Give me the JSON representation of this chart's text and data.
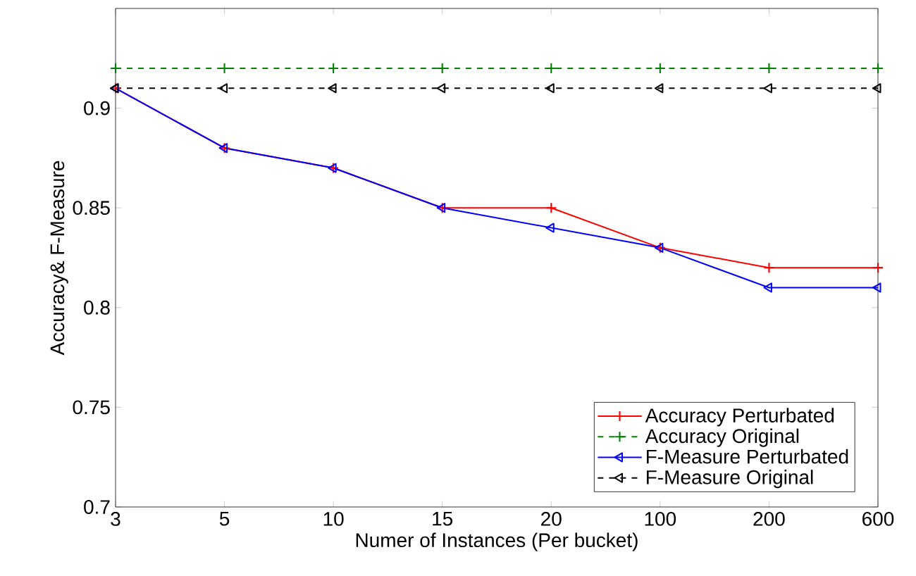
{
  "chart_data": {
    "type": "line",
    "xlabel": "Numer of Instances (Per bucket)",
    "ylabel": "Accuracy& F-Measure",
    "categories": [
      "3",
      "5",
      "10",
      "15",
      "20",
      "100",
      "200",
      "600"
    ],
    "ylim": [
      0.7,
      0.95
    ],
    "yticks": [
      0.7,
      0.75,
      0.8,
      0.85,
      0.9
    ],
    "legend": "bottom right",
    "grid": false,
    "series": [
      {
        "name": "Accuracy Perturbated",
        "color": "#ff0000",
        "marker": "cross",
        "line_style": "solid",
        "values": [
          0.91,
          0.88,
          0.87,
          0.85,
          0.85,
          0.83,
          0.82,
          0.82
        ]
      },
      {
        "name": "Accuracy Original",
        "color": "#008000",
        "marker": "cross",
        "line_style": "dashed",
        "values": [
          0.92,
          0.92,
          0.92,
          0.92,
          0.92,
          0.92,
          0.92,
          0.92
        ]
      },
      {
        "name": "F-Measure Perturbated",
        "color": "#0000ff",
        "marker": "triangle",
        "line_style": "solid",
        "values": [
          0.91,
          0.88,
          0.87,
          0.85,
          0.84,
          0.83,
          0.81,
          0.81
        ]
      },
      {
        "name": "F-Measure Original",
        "color": "#000000",
        "marker": "triangle",
        "line_style": "dashed",
        "values": [
          0.91,
          0.91,
          0.91,
          0.91,
          0.91,
          0.91,
          0.91,
          0.91
        ]
      }
    ]
  }
}
